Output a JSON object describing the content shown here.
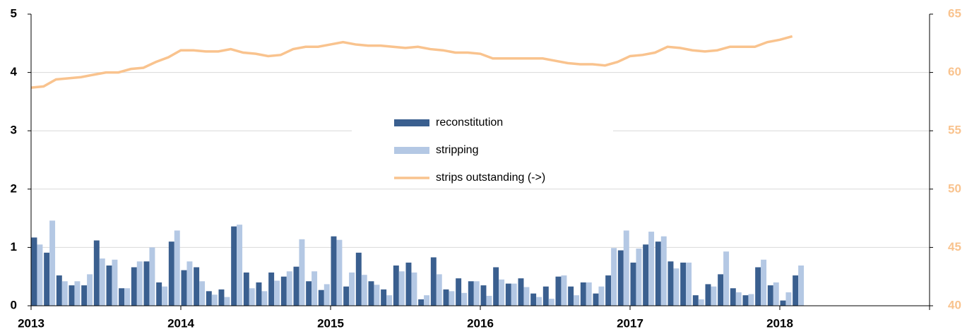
{
  "chart_data": {
    "type": "bar",
    "categories": [
      "2013",
      null,
      null,
      null,
      null,
      null,
      null,
      null,
      null,
      null,
      null,
      null,
      "2014",
      null,
      null,
      null,
      null,
      null,
      null,
      null,
      null,
      null,
      null,
      null,
      "2015",
      null,
      null,
      null,
      null,
      null,
      null,
      null,
      null,
      null,
      null,
      null,
      "2016",
      null,
      null,
      null,
      null,
      null,
      null,
      null,
      null,
      null,
      null,
      null,
      "2017",
      null,
      null,
      null,
      null,
      null,
      null,
      null,
      null,
      null,
      null,
      null,
      "2018",
      null
    ],
    "xlim": [
      0,
      72
    ],
    "series": [
      {
        "name": "reconstitution",
        "color": "#3a5f8f",
        "values": [
          1.17,
          0.91,
          0.52,
          0.35,
          0.35,
          1.12,
          0.69,
          0.3,
          0.66,
          0.76,
          0.4,
          1.1,
          0.61,
          0.66,
          0.25,
          0.28,
          1.36,
          0.57,
          0.4,
          0.57,
          0.5,
          0.67,
          0.42,
          0.27,
          1.19,
          0.33,
          0.91,
          0.42,
          0.28,
          0.69,
          0.74,
          0.11,
          0.83,
          0.28,
          0.47,
          0.42,
          0.35,
          0.66,
          0.38,
          0.47,
          0.21,
          0.33,
          0.5,
          0.33,
          0.4,
          0.21,
          0.52,
          0.95,
          0.74,
          1.05,
          1.1,
          0.76,
          0.74,
          0.18,
          0.37,
          0.54,
          0.3,
          0.18,
          0.66,
          0.35,
          0.09,
          0.52
        ]
      },
      {
        "name": "stripping",
        "color": "#b4c8e4",
        "values": [
          1.05,
          1.46,
          0.42,
          0.42,
          0.54,
          0.81,
          0.79,
          0.3,
          0.76,
          1.0,
          0.33,
          1.29,
          0.76,
          0.42,
          0.19,
          0.15,
          1.39,
          0.3,
          0.25,
          0.43,
          0.59,
          1.14,
          0.59,
          0.37,
          1.13,
          0.57,
          0.53,
          0.36,
          0.18,
          0.59,
          0.57,
          0.18,
          0.54,
          0.25,
          0.22,
          0.42,
          0.17,
          0.45,
          0.38,
          0.32,
          0.15,
          0.12,
          0.52,
          0.18,
          0.4,
          0.33,
          0.99,
          1.29,
          0.98,
          1.27,
          1.19,
          0.64,
          0.74,
          0.11,
          0.33,
          0.93,
          0.23,
          0.2,
          0.79,
          0.4,
          0.23,
          0.69
        ]
      },
      {
        "name": "strips outstanding (->)",
        "color": "#f9c38e",
        "axis": "y2",
        "type": "line",
        "values": [
          58.7,
          58.8,
          59.4,
          59.5,
          59.6,
          59.8,
          60.0,
          60.0,
          60.3,
          60.4,
          60.9,
          61.3,
          61.9,
          61.9,
          61.8,
          61.8,
          62.0,
          61.7,
          61.6,
          61.4,
          61.5,
          62.0,
          62.2,
          62.2,
          62.4,
          62.6,
          62.4,
          62.3,
          62.3,
          62.2,
          62.1,
          62.2,
          62.0,
          61.9,
          61.7,
          61.7,
          61.6,
          61.2,
          61.2,
          61.2,
          61.2,
          61.2,
          61.0,
          60.8,
          60.7,
          60.7,
          60.6,
          60.9,
          61.4,
          61.5,
          61.7,
          62.2,
          62.1,
          61.9,
          61.8,
          61.9,
          62.2,
          62.2,
          62.2,
          62.6,
          62.8,
          63.1
        ]
      }
    ],
    "ylim": [
      0,
      5
    ],
    "yticks": [
      0,
      1,
      2,
      3,
      4,
      5
    ],
    "y2lim": [
      40,
      65
    ],
    "y2ticks": [
      40,
      45,
      50,
      55,
      60,
      65
    ],
    "grid": true,
    "legend": "center"
  }
}
